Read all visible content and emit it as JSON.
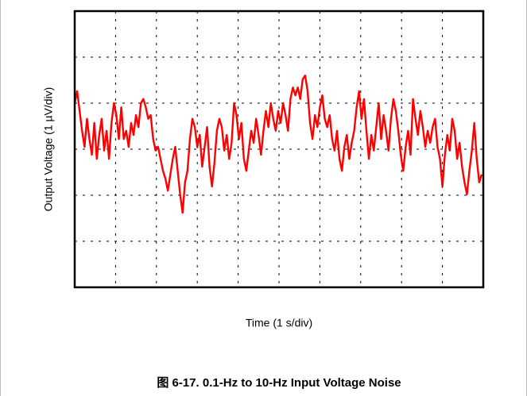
{
  "chart_data": {
    "type": "line",
    "x_label": "Time (1 s/div)",
    "y_label": "Output Voltage (1 µV/div)",
    "caption": "图 6-17. 0.1-Hz to 10-Hz Input Voltage Noise",
    "xlim": [
      0,
      10
    ],
    "xticks": [
      0,
      1,
      2,
      3,
      4,
      5,
      6,
      7,
      8,
      9,
      10
    ],
    "ylim": [
      -3,
      3
    ],
    "yticks": [
      -3,
      -2,
      -1,
      0,
      1,
      2,
      3
    ],
    "grid": true,
    "color": "#ff0000",
    "x": [
      0,
      0.06,
      0.12,
      0.18,
      0.24,
      0.3,
      0.36,
      0.42,
      0.48,
      0.54,
      0.6,
      0.66,
      0.72,
      0.78,
      0.84,
      0.9,
      0.96,
      1.02,
      1.08,
      1.14,
      1.2,
      1.26,
      1.32,
      1.38,
      1.44,
      1.5,
      1.56,
      1.62,
      1.68,
      1.74,
      1.8,
      1.86,
      1.92,
      1.98,
      2.04,
      2.1,
      2.16,
      2.22,
      2.28,
      2.34,
      2.4,
      2.46,
      2.52,
      2.58,
      2.64,
      2.7,
      2.76,
      2.82,
      2.88,
      2.94,
      3,
      3.06,
      3.12,
      3.18,
      3.24,
      3.3,
      3.36,
      3.42,
      3.48,
      3.54,
      3.6,
      3.66,
      3.72,
      3.78,
      3.84,
      3.9,
      3.96,
      4.02,
      4.08,
      4.14,
      4.2,
      4.26,
      4.32,
      4.38,
      4.44,
      4.5,
      4.56,
      4.62,
      4.68,
      4.74,
      4.8,
      4.86,
      4.92,
      4.98,
      5.04,
      5.1,
      5.16,
      5.22,
      5.28,
      5.34,
      5.4,
      5.46,
      5.52,
      5.58,
      5.64,
      5.7,
      5.76,
      5.82,
      5.88,
      5.94,
      6,
      6.06,
      6.12,
      6.18,
      6.24,
      6.3,
      6.36,
      6.42,
      6.48,
      6.54,
      6.6,
      6.66,
      6.72,
      6.78,
      6.84,
      6.9,
      6.96,
      7.02,
      7.08,
      7.14,
      7.2,
      7.26,
      7.32,
      7.38,
      7.44,
      7.5,
      7.56,
      7.62,
      7.68,
      7.74,
      7.8,
      7.86,
      7.92,
      7.98,
      8.04,
      8.1,
      8.16,
      8.22,
      8.28,
      8.34,
      8.4,
      8.46,
      8.52,
      8.58,
      8.64,
      8.7,
      8.76,
      8.82,
      8.88,
      8.94,
      9,
      9.06,
      9.12,
      9.18,
      9.24,
      9.3,
      9.36,
      9.42,
      9.48,
      9.54,
      9.6,
      9.66,
      9.72,
      9.78,
      9.84,
      9.9,
      9.96
    ],
    "values": [
      1.0,
      1.26,
      0.83,
      0.4,
      0.05,
      0.66,
      0.22,
      -0.12,
      0.57,
      -0.21,
      0.31,
      0.66,
      -0.03,
      0.4,
      -0.21,
      0.57,
      1.0,
      0.74,
      0.22,
      0.91,
      0.22,
      0.4,
      0.05,
      0.57,
      0.31,
      0.74,
      0.48,
      1.0,
      1.09,
      0.91,
      0.66,
      0.74,
      0.22,
      -0.03,
      0.05,
      -0.21,
      -0.47,
      -0.64,
      -0.9,
      -0.55,
      -0.21,
      0.05,
      -0.47,
      -0.98,
      -1.38,
      -0.72,
      -0.47,
      0.22,
      0.66,
      0.48,
      0.05,
      0.31,
      -0.38,
      0.05,
      0.48,
      -0.38,
      -0.81,
      -0.29,
      0.4,
      0.66,
      0.48,
      -0.03,
      0.31,
      -0.21,
      0.14,
      1.0,
      0.74,
      0.22,
      0.57,
      -0.21,
      -0.47,
      -0.03,
      0.4,
      0.14,
      0.66,
      0.31,
      -0.12,
      0.4,
      0.83,
      0.48,
      1.0,
      0.66,
      0.4,
      0.83,
      0.57,
      1.0,
      0.74,
      0.4,
      1.09,
      1.34,
      1.17,
      1.34,
      1.09,
      1.52,
      1.6,
      1.26,
      0.57,
      0.22,
      0.74,
      0.48,
      0.91,
      1.17,
      0.66,
      0.48,
      0.74,
      0.22,
      -0.03,
      0.4,
      -0.21,
      -0.47,
      0.05,
      0.31,
      -0.21,
      0.14,
      0.4,
      0.91,
      1.26,
      0.66,
      1.09,
      0.4,
      -0.21,
      0.31,
      -0.03,
      0.48,
      1.0,
      0.22,
      0.74,
      0.4,
      -0.03,
      0.66,
      1.09,
      0.83,
      0.4,
      -0.12,
      -0.47,
      0.05,
      0.4,
      -0.12,
      1.09,
      0.66,
      0.31,
      0.83,
      0.48,
      0.05,
      0.4,
      0.14,
      0.48,
      0.66,
      0.05,
      -0.21,
      -0.81,
      -0.12,
      0.31,
      -0.03,
      0.66,
      0.4,
      -0.21,
      0.14,
      -0.38,
      -0.72,
      -0.98,
      -0.47,
      -0.03,
      0.57,
      -0.21,
      -0.72,
      -0.55
    ]
  }
}
